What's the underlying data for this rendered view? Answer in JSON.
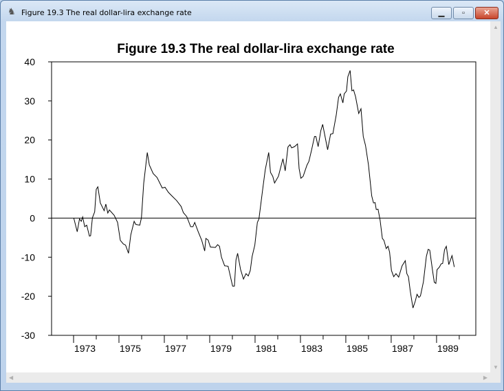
{
  "window": {
    "title": "Figure 19.3 The real dollar-lira exchange rate",
    "minimize_icon": "minimize-icon",
    "maximize_icon": "maximize-icon",
    "close_icon": "close-icon",
    "min_glyph": "▁",
    "max_glyph": "▫",
    "close_glyph": "✕"
  },
  "chart_data": {
    "type": "line",
    "title": "Figure 19.3 The real dollar-lira exchange rate",
    "xlabel": "",
    "ylabel": "",
    "xlim": [
      1972.03,
      1990.73
    ],
    "ylim": [
      -30,
      40
    ],
    "yticks": [
      40,
      30,
      20,
      10,
      0,
      -10,
      -20,
      -30
    ],
    "ytick_labels": [
      "40",
      "30",
      "20",
      "10",
      "0",
      "-10",
      "-20",
      "-30"
    ],
    "xticks_major": [
      1973,
      1975,
      1977,
      1979,
      1981,
      1983,
      1985,
      1987,
      1989
    ],
    "xtick_labels": [
      "1973",
      "1975",
      "1977",
      "1979",
      "1981",
      "1983",
      "1985",
      "1987",
      "1989"
    ],
    "reference_line": 0,
    "grid": false,
    "legend": "none",
    "series": [
      {
        "name": "real dollar-lira exchange rate",
        "x": [
          1973.01,
          1973.16,
          1973.26,
          1973.34,
          1973.4,
          1973.49,
          1973.58,
          1973.7,
          1973.75,
          1973.83,
          1973.93,
          1974.0,
          1974.07,
          1974.18,
          1974.35,
          1974.42,
          1974.51,
          1974.58,
          1974.79,
          1974.94,
          1975.06,
          1975.19,
          1975.29,
          1975.42,
          1975.52,
          1975.67,
          1975.74,
          1975.92,
          1975.99,
          1976.09,
          1976.25,
          1976.34,
          1976.51,
          1976.68,
          1976.91,
          1977.03,
          1977.18,
          1977.33,
          1977.54,
          1977.74,
          1977.84,
          1977.99,
          1978.16,
          1978.26,
          1978.34,
          1978.49,
          1978.65,
          1978.78,
          1978.83,
          1978.93,
          1979.03,
          1979.25,
          1979.35,
          1979.43,
          1979.52,
          1979.66,
          1979.81,
          1980.01,
          1980.09,
          1980.16,
          1980.23,
          1980.36,
          1980.49,
          1980.6,
          1980.7,
          1980.79,
          1980.87,
          1980.99,
          1981.1,
          1981.17,
          1981.35,
          1981.45,
          1981.6,
          1981.68,
          1981.78,
          1981.86,
          1982.03,
          1982.23,
          1982.33,
          1982.45,
          1982.54,
          1982.61,
          1982.74,
          1982.87,
          1982.94,
          1983.02,
          1983.12,
          1983.29,
          1983.37,
          1983.49,
          1983.62,
          1983.68,
          1983.78,
          1983.9,
          1983.98,
          1984.2,
          1984.33,
          1984.43,
          1984.58,
          1984.68,
          1984.76,
          1984.87,
          1984.93,
          1985.03,
          1985.09,
          1985.19,
          1985.27,
          1985.34,
          1985.43,
          1985.57,
          1985.67,
          1985.77,
          1985.87,
          1986.0,
          1986.14,
          1986.22,
          1986.29,
          1986.34,
          1986.42,
          1986.51,
          1986.61,
          1986.68,
          1986.78,
          1986.86,
          1986.93,
          1987.01,
          1987.11,
          1987.21,
          1987.33,
          1987.48,
          1987.62,
          1987.69,
          1987.76,
          1987.84,
          1987.96,
          1988.06,
          1988.14,
          1988.22,
          1988.29,
          1988.42,
          1988.55,
          1988.63,
          1988.7,
          1988.83,
          1988.9,
          1988.97,
          1989.02,
          1989.13,
          1989.2,
          1989.27,
          1989.35,
          1989.43,
          1989.54,
          1989.68,
          1989.78
        ],
        "y": [
          0,
          -3.5,
          -0.2,
          -0.8,
          0.3,
          -2.2,
          -1.8,
          -4.6,
          -4.5,
          0.1,
          1.6,
          7.4,
          8.0,
          3.9,
          1.9,
          3.6,
          1.3,
          2.1,
          0.7,
          -1.1,
          -5.7,
          -6.6,
          -6.9,
          -9.0,
          -4.3,
          -0.8,
          -1.6,
          -1.8,
          0.1,
          8.9,
          16.8,
          13.6,
          11.4,
          10.4,
          7.7,
          7.9,
          6.6,
          5.7,
          4.5,
          3.0,
          1.4,
          0.4,
          -2.2,
          -2.2,
          -1.1,
          -3.4,
          -5.7,
          -8.4,
          -5.2,
          -5.6,
          -7.4,
          -7.5,
          -6.8,
          -7.2,
          -10.0,
          -12.2,
          -12.3,
          -17.4,
          -17.4,
          -10.7,
          -9.0,
          -13.1,
          -15.6,
          -14.2,
          -14.8,
          -13.4,
          -9.8,
          -6.9,
          -1.1,
          -0.2,
          8.0,
          12.4,
          16.8,
          11.7,
          10.7,
          9.0,
          10.7,
          15.2,
          12.1,
          18.2,
          18.8,
          18.0,
          18.3,
          19.0,
          12.7,
          10.2,
          10.7,
          13.6,
          14.5,
          17.4,
          20.9,
          20.9,
          18.3,
          22.4,
          24.0,
          17.5,
          21.5,
          21.6,
          26.5,
          30.9,
          31.8,
          29.5,
          31.8,
          32.5,
          36.2,
          37.8,
          32.6,
          32.8,
          31.1,
          26.8,
          28.0,
          20.9,
          18.6,
          13.6,
          5.7,
          3.9,
          4.0,
          2.2,
          2.3,
          -0.5,
          -5.2,
          -5.7,
          -7.8,
          -7.2,
          -8.7,
          -13.4,
          -15.0,
          -14.2,
          -15.1,
          -12.2,
          -10.9,
          -14.2,
          -15.0,
          -18.6,
          -23.0,
          -21.3,
          -19.5,
          -20.3,
          -19.9,
          -16.3,
          -9.8,
          -8.0,
          -8.2,
          -13.7,
          -16.4,
          -16.7,
          -13.2,
          -12.5,
          -11.7,
          -11.6,
          -8.1,
          -7.2,
          -11.9,
          -9.6,
          -12.5
        ],
        "color": "#000000"
      }
    ]
  }
}
